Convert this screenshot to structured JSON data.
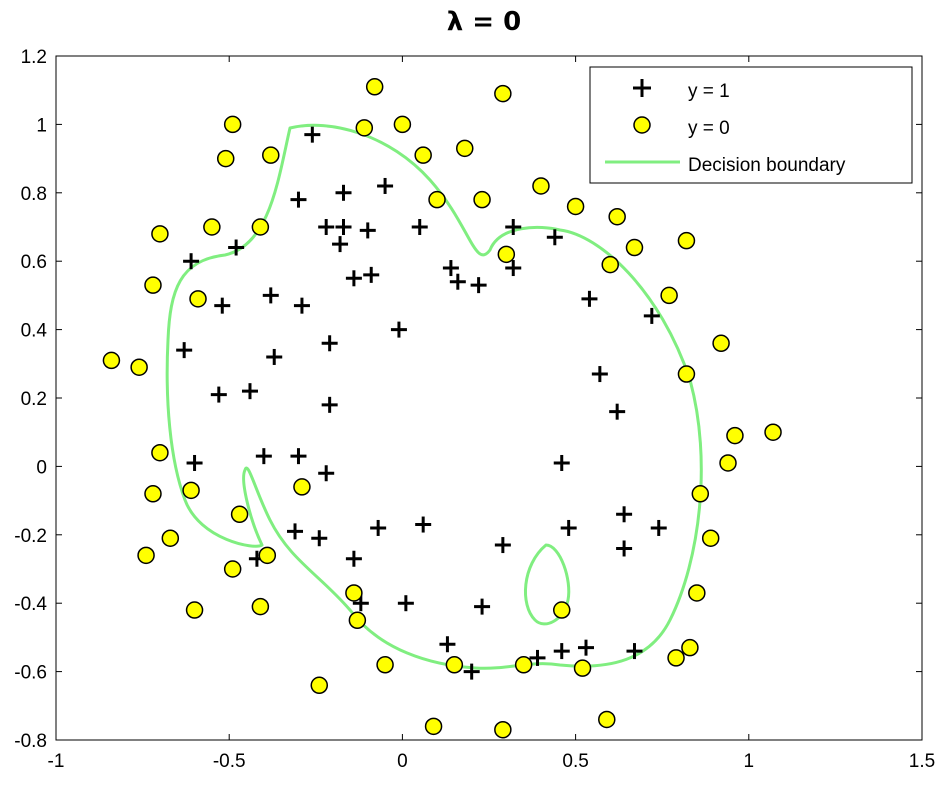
{
  "chart_data": {
    "type": "scatter",
    "title": "λ = 0",
    "xlabel": "",
    "ylabel": "",
    "xlim": [
      -1,
      1.5
    ],
    "ylim": [
      -0.8,
      1.2
    ],
    "xticks": [
      "-1",
      "-0.5",
      "0",
      "0.5",
      "1",
      "1.5"
    ],
    "yticks": [
      "1.2",
      "1",
      "0.8",
      "0.6",
      "0.4",
      "0.2",
      "0",
      "-0.2",
      "-0.4",
      "-0.6",
      "-0.8"
    ],
    "grid": false,
    "legend_position": "top-right",
    "series": [
      {
        "name": "y = 1",
        "marker": "plus",
        "color": "#000000",
        "points": [
          [
            -0.26,
            0.97
          ],
          [
            -0.3,
            0.78
          ],
          [
            -0.17,
            0.8
          ],
          [
            -0.05,
            0.82
          ],
          [
            -0.22,
            0.7
          ],
          [
            -0.17,
            0.7
          ],
          [
            -0.1,
            0.69
          ],
          [
            -0.18,
            0.65
          ],
          [
            0.05,
            0.7
          ],
          [
            -0.61,
            0.6
          ],
          [
            -0.48,
            0.64
          ],
          [
            -0.14,
            0.55
          ],
          [
            -0.09,
            0.56
          ],
          [
            0.14,
            0.58
          ],
          [
            0.16,
            0.54
          ],
          [
            0.22,
            0.53
          ],
          [
            0.32,
            0.7
          ],
          [
            0.32,
            0.58
          ],
          [
            0.44,
            0.67
          ],
          [
            0.54,
            0.49
          ],
          [
            0.72,
            0.44
          ],
          [
            -0.52,
            0.47
          ],
          [
            -0.38,
            0.5
          ],
          [
            -0.29,
            0.47
          ],
          [
            -0.01,
            0.4
          ],
          [
            -0.63,
            0.34
          ],
          [
            -0.37,
            0.32
          ],
          [
            -0.21,
            0.36
          ],
          [
            -0.53,
            0.21
          ],
          [
            -0.44,
            0.22
          ],
          [
            -0.21,
            0.18
          ],
          [
            0.57,
            0.27
          ],
          [
            0.62,
            0.16
          ],
          [
            -0.6,
            0.01
          ],
          [
            -0.4,
            0.03
          ],
          [
            -0.3,
            0.03
          ],
          [
            -0.22,
            -0.02
          ],
          [
            0.46,
            0.01
          ],
          [
            -0.31,
            -0.19
          ],
          [
            -0.24,
            -0.21
          ],
          [
            -0.07,
            -0.18
          ],
          [
            0.06,
            -0.17
          ],
          [
            -0.14,
            -0.27
          ],
          [
            0.29,
            -0.23
          ],
          [
            0.48,
            -0.18
          ],
          [
            0.64,
            -0.14
          ],
          [
            0.74,
            -0.18
          ],
          [
            0.64,
            -0.24
          ],
          [
            -0.42,
            -0.27
          ],
          [
            -0.12,
            -0.4
          ],
          [
            0.01,
            -0.4
          ],
          [
            0.23,
            -0.41
          ],
          [
            0.13,
            -0.52
          ],
          [
            0.2,
            -0.6
          ],
          [
            0.39,
            -0.56
          ],
          [
            0.46,
            -0.54
          ],
          [
            0.53,
            -0.53
          ],
          [
            0.67,
            -0.54
          ]
        ]
      },
      {
        "name": "y = 0",
        "marker": "circle",
        "color": "#ffff00",
        "points": [
          [
            -0.08,
            1.11
          ],
          [
            0.29,
            1.09
          ],
          [
            -0.49,
            1.0
          ],
          [
            -0.11,
            0.99
          ],
          [
            0.0,
            1.0
          ],
          [
            -0.51,
            0.9
          ],
          [
            -0.38,
            0.91
          ],
          [
            0.06,
            0.91
          ],
          [
            0.18,
            0.93
          ],
          [
            0.4,
            0.82
          ],
          [
            0.1,
            0.78
          ],
          [
            0.23,
            0.78
          ],
          [
            0.5,
            0.76
          ],
          [
            0.62,
            0.73
          ],
          [
            -0.55,
            0.7
          ],
          [
            -0.7,
            0.68
          ],
          [
            -0.41,
            0.7
          ],
          [
            0.3,
            0.62
          ],
          [
            0.6,
            0.59
          ],
          [
            0.67,
            0.64
          ],
          [
            0.82,
            0.66
          ],
          [
            -0.72,
            0.53
          ],
          [
            -0.59,
            0.49
          ],
          [
            0.77,
            0.5
          ],
          [
            -0.84,
            0.31
          ],
          [
            -0.76,
            0.29
          ],
          [
            0.92,
            0.36
          ],
          [
            0.82,
            0.27
          ],
          [
            0.96,
            0.09
          ],
          [
            1.07,
            0.1
          ],
          [
            -0.7,
            0.04
          ],
          [
            0.94,
            0.01
          ],
          [
            -0.72,
            -0.08
          ],
          [
            -0.61,
            -0.07
          ],
          [
            -0.29,
            -0.06
          ],
          [
            0.86,
            -0.08
          ],
          [
            -0.47,
            -0.14
          ],
          [
            -0.67,
            -0.21
          ],
          [
            0.89,
            -0.21
          ],
          [
            -0.74,
            -0.26
          ],
          [
            -0.49,
            -0.3
          ],
          [
            -0.39,
            -0.26
          ],
          [
            -0.14,
            -0.37
          ],
          [
            0.85,
            -0.37
          ],
          [
            -0.6,
            -0.42
          ],
          [
            -0.41,
            -0.41
          ],
          [
            -0.13,
            -0.45
          ],
          [
            0.46,
            -0.42
          ],
          [
            -0.05,
            -0.58
          ],
          [
            0.15,
            -0.58
          ],
          [
            0.35,
            -0.58
          ],
          [
            0.52,
            -0.59
          ],
          [
            0.79,
            -0.56
          ],
          [
            0.83,
            -0.53
          ],
          [
            -0.24,
            -0.64
          ],
          [
            0.09,
            -0.76
          ],
          [
            0.29,
            -0.77
          ],
          [
            0.59,
            -0.74
          ]
        ]
      },
      {
        "name": "Decision boundary",
        "marker": "line",
        "color": "#80ee80"
      }
    ]
  }
}
